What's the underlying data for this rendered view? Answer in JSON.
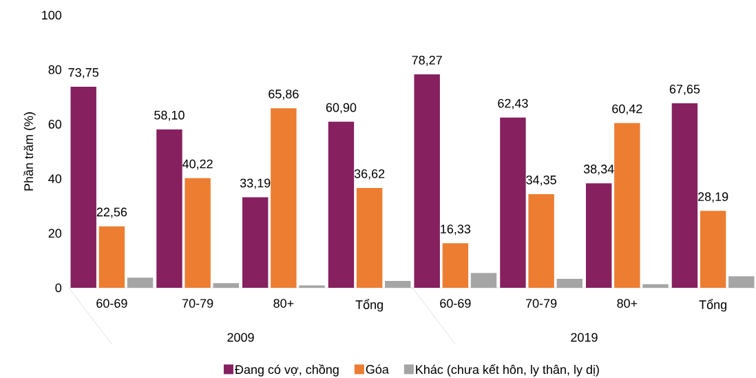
{
  "chart_data": {
    "type": "bar",
    "ylabel": "Phần trăm (%)",
    "categories": [
      "60-69",
      "70-79",
      "80+",
      "Tổng",
      "60-69",
      "70-79",
      "80+",
      "Tổng"
    ],
    "annotations": [
      "2009",
      "2019"
    ],
    "series": [
      {
        "name": "Đang có vợ, chồng",
        "color": "#86205f",
        "values": [
          73.75,
          58.1,
          33.19,
          60.9,
          78.27,
          62.43,
          38.34,
          67.65
        ],
        "value_labels": [
          "73,75",
          "58,10",
          "33,19",
          "60,90",
          "78,27",
          "62,43",
          "38,34",
          "67,65"
        ]
      },
      {
        "name": "Góa",
        "color": "#ed7d31",
        "values": [
          22.56,
          40.22,
          65.86,
          36.62,
          16.33,
          34.35,
          60.42,
          28.19
        ],
        "value_labels": [
          "22,56",
          "40,22",
          "65,86",
          "36,62",
          "16,33",
          "34,35",
          "60,42",
          "28,19"
        ]
      },
      {
        "name": "Khác (chưa kết hôn, ly thân, ly dị)",
        "color": "#a5a5a5",
        "values": [
          3.7,
          1.7,
          0.9,
          2.5,
          5.4,
          3.3,
          1.3,
          4.2
        ]
      }
    ],
    "ylim": [
      0,
      100
    ],
    "yticks": [
      0,
      20,
      40,
      60,
      80,
      100
    ],
    "grid": false,
    "legend": "bottom"
  }
}
